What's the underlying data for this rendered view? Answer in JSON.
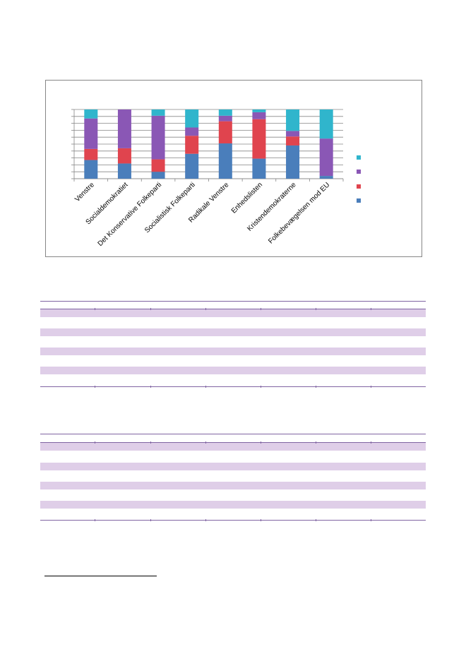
{
  "chart_data": {
    "type": "bar",
    "stacked": true,
    "percent_stacked": true,
    "categories": [
      "Venstre",
      "Socialdemokratiet",
      "Det Konservative Folkeparti",
      "Socialistisk Folkeparti",
      "Radikale Venstre",
      "Enhedslisten",
      "Kristendemokraterne",
      "Folkebevægelsen mod EU"
    ],
    "series": [
      {
        "values": [
          27,
          22,
          10,
          36,
          51,
          29,
          48,
          4
        ],
        "color": "#4a7ebb"
      },
      {
        "values": [
          16,
          22,
          18,
          26,
          32,
          57,
          13,
          0
        ],
        "color": "#e0444e"
      },
      {
        "values": [
          44,
          56,
          63,
          12,
          8,
          10,
          8,
          54
        ],
        "color": "#8a57b5"
      },
      {
        "values": [
          13,
          0,
          9,
          26,
          9,
          4,
          31,
          42
        ],
        "color": "#30b5cc"
      }
    ],
    "ylim": [
      0,
      100
    ],
    "grid": true,
    "legend": "right"
  },
  "tables": [
    {
      "bands": 4
    },
    {
      "bands": 4
    }
  ]
}
